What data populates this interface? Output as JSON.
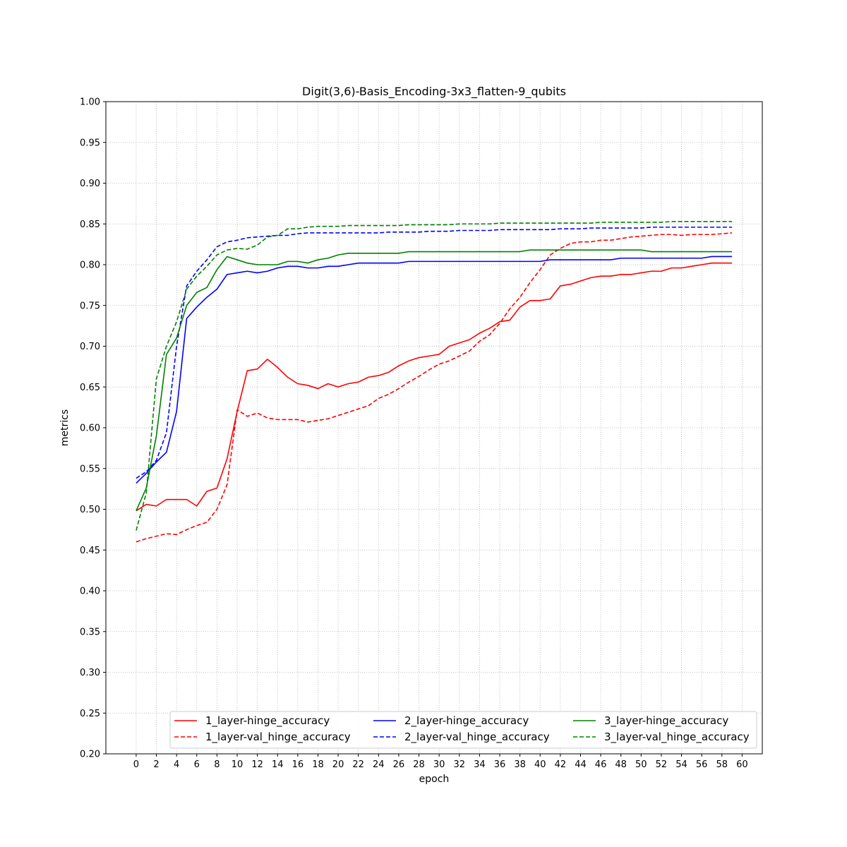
{
  "chart_data": {
    "type": "line",
    "title": "Digit(3,6)-Basis_Encoding-3x3_flatten-9_qubits",
    "xlabel": "epoch",
    "ylabel": "metrics",
    "xlim": [
      -3,
      62
    ],
    "ylim": [
      0.2,
      1.0
    ],
    "xticks": [
      0,
      2,
      4,
      6,
      8,
      10,
      12,
      14,
      16,
      18,
      20,
      22,
      24,
      26,
      28,
      30,
      32,
      34,
      36,
      38,
      40,
      42,
      44,
      46,
      48,
      50,
      52,
      54,
      56,
      58,
      60
    ],
    "yticks": [
      0.2,
      0.25,
      0.3,
      0.35,
      0.4,
      0.45,
      0.5,
      0.55,
      0.6,
      0.65,
      0.7,
      0.75,
      0.8,
      0.85,
      0.9,
      0.95,
      1.0
    ],
    "xtick_labels": [
      "0",
      "2",
      "4",
      "6",
      "8",
      "10",
      "12",
      "14",
      "16",
      "18",
      "20",
      "22",
      "24",
      "26",
      "28",
      "30",
      "32",
      "34",
      "36",
      "38",
      "40",
      "42",
      "44",
      "46",
      "48",
      "50",
      "52",
      "54",
      "56",
      "58",
      "60"
    ],
    "ytick_labels": [
      "0.20",
      "0.25",
      "0.30",
      "0.35",
      "0.40",
      "0.45",
      "0.50",
      "0.55",
      "0.60",
      "0.65",
      "0.70",
      "0.75",
      "0.80",
      "0.85",
      "0.90",
      "0.95",
      "1.00"
    ],
    "grid": true,
    "legend_position": "lower-right",
    "legend_columns": 3,
    "series": [
      {
        "name": "1_layer-hinge_accuracy",
        "color": "#ff0000",
        "dash": "solid",
        "values": [
          0.498,
          0.506,
          0.504,
          0.512,
          0.512,
          0.512,
          0.504,
          0.522,
          0.526,
          0.562,
          0.62,
          0.67,
          0.672,
          0.684,
          0.674,
          0.662,
          0.654,
          0.652,
          0.648,
          0.654,
          0.65,
          0.654,
          0.656,
          0.662,
          0.664,
          0.668,
          0.676,
          0.682,
          0.686,
          0.688,
          0.69,
          0.7,
          0.704,
          0.708,
          0.716,
          0.722,
          0.73,
          0.732,
          0.748,
          0.756,
          0.756,
          0.758,
          0.774,
          0.776,
          0.78,
          0.784,
          0.786,
          0.786,
          0.788,
          0.788,
          0.79,
          0.792,
          0.792,
          0.796,
          0.796,
          0.798,
          0.8,
          0.802,
          0.802,
          0.802
        ]
      },
      {
        "name": "1_layer-val_hinge_accuracy",
        "color": "#ff0000",
        "dash": "dashed",
        "values": [
          0.46,
          0.464,
          0.467,
          0.47,
          0.469,
          0.475,
          0.48,
          0.484,
          0.5,
          0.53,
          0.622,
          0.614,
          0.618,
          0.612,
          0.61,
          0.61,
          0.61,
          0.607,
          0.609,
          0.611,
          0.615,
          0.619,
          0.623,
          0.627,
          0.636,
          0.641,
          0.648,
          0.656,
          0.663,
          0.671,
          0.678,
          0.682,
          0.688,
          0.694,
          0.706,
          0.714,
          0.728,
          0.746,
          0.76,
          0.778,
          0.794,
          0.812,
          0.82,
          0.826,
          0.828,
          0.828,
          0.83,
          0.83,
          0.832,
          0.834,
          0.835,
          0.836,
          0.837,
          0.837,
          0.836,
          0.837,
          0.837,
          0.837,
          0.838,
          0.839
        ]
      },
      {
        "name": "2_layer-hinge_accuracy",
        "color": "#0000ff",
        "dash": "solid",
        "values": [
          0.532,
          0.544,
          0.558,
          0.57,
          0.62,
          0.734,
          0.748,
          0.76,
          0.77,
          0.788,
          0.79,
          0.792,
          0.79,
          0.792,
          0.796,
          0.798,
          0.798,
          0.796,
          0.796,
          0.798,
          0.798,
          0.8,
          0.802,
          0.802,
          0.802,
          0.802,
          0.802,
          0.804,
          0.804,
          0.804,
          0.804,
          0.804,
          0.804,
          0.804,
          0.804,
          0.804,
          0.804,
          0.804,
          0.804,
          0.804,
          0.804,
          0.806,
          0.806,
          0.806,
          0.806,
          0.806,
          0.806,
          0.806,
          0.808,
          0.808,
          0.808,
          0.808,
          0.808,
          0.808,
          0.808,
          0.808,
          0.808,
          0.81,
          0.81,
          0.81
        ]
      },
      {
        "name": "2_layer-val_hinge_accuracy",
        "color": "#0000ff",
        "dash": "dashed",
        "values": [
          0.538,
          0.546,
          0.56,
          0.594,
          0.7,
          0.774,
          0.792,
          0.806,
          0.822,
          0.828,
          0.83,
          0.833,
          0.834,
          0.835,
          0.836,
          0.836,
          0.838,
          0.839,
          0.839,
          0.839,
          0.839,
          0.839,
          0.839,
          0.839,
          0.839,
          0.84,
          0.84,
          0.84,
          0.84,
          0.841,
          0.841,
          0.841,
          0.842,
          0.842,
          0.842,
          0.842,
          0.843,
          0.843,
          0.843,
          0.843,
          0.843,
          0.843,
          0.844,
          0.844,
          0.844,
          0.845,
          0.845,
          0.845,
          0.845,
          0.845,
          0.845,
          0.846,
          0.846,
          0.846,
          0.846,
          0.846,
          0.846,
          0.846,
          0.846,
          0.846
        ]
      },
      {
        "name": "3_layer-hinge_accuracy",
        "color": "#008000",
        "dash": "solid",
        "values": [
          0.498,
          0.526,
          0.59,
          0.69,
          0.71,
          0.75,
          0.766,
          0.772,
          0.794,
          0.81,
          0.806,
          0.802,
          0.8,
          0.8,
          0.8,
          0.804,
          0.804,
          0.802,
          0.806,
          0.808,
          0.812,
          0.814,
          0.814,
          0.814,
          0.814,
          0.814,
          0.814,
          0.816,
          0.816,
          0.816,
          0.816,
          0.816,
          0.816,
          0.816,
          0.816,
          0.816,
          0.816,
          0.816,
          0.816,
          0.818,
          0.818,
          0.818,
          0.818,
          0.818,
          0.818,
          0.818,
          0.818,
          0.818,
          0.818,
          0.818,
          0.818,
          0.816,
          0.816,
          0.816,
          0.816,
          0.816,
          0.816,
          0.816,
          0.816,
          0.816
        ]
      },
      {
        "name": "3_layer-val_hinge_accuracy",
        "color": "#008000",
        "dash": "dashed",
        "values": [
          0.474,
          0.52,
          0.66,
          0.7,
          0.73,
          0.77,
          0.786,
          0.798,
          0.812,
          0.818,
          0.82,
          0.819,
          0.824,
          0.834,
          0.836,
          0.844,
          0.844,
          0.846,
          0.847,
          0.847,
          0.847,
          0.848,
          0.848,
          0.848,
          0.848,
          0.848,
          0.848,
          0.849,
          0.849,
          0.849,
          0.849,
          0.849,
          0.85,
          0.85,
          0.85,
          0.85,
          0.851,
          0.851,
          0.851,
          0.851,
          0.851,
          0.851,
          0.851,
          0.851,
          0.851,
          0.851,
          0.852,
          0.852,
          0.852,
          0.852,
          0.852,
          0.852,
          0.852,
          0.853,
          0.853,
          0.853,
          0.853,
          0.853,
          0.853,
          0.853
        ]
      }
    ]
  }
}
